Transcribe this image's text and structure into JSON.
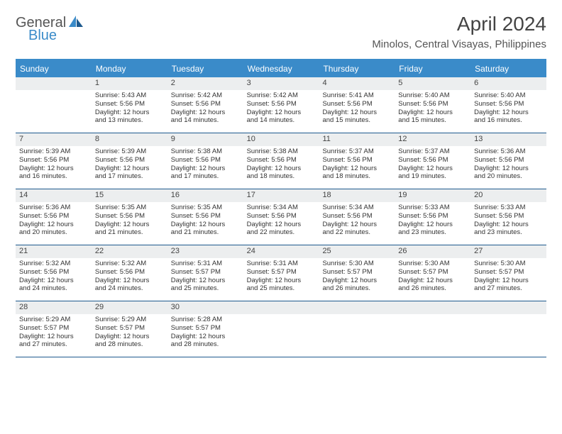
{
  "brand": {
    "general": "General",
    "blue": "Blue"
  },
  "title": {
    "month": "April 2024",
    "location": "Minolos, Central Visayas, Philippines"
  },
  "colors": {
    "accent": "#3a8bc9",
    "header_bg": "#3a8bc9",
    "daynum_bg": "#eceeef",
    "border": "#1e5a8e",
    "text": "#333333"
  },
  "day_names": [
    "Sunday",
    "Monday",
    "Tuesday",
    "Wednesday",
    "Thursday",
    "Friday",
    "Saturday"
  ],
  "weeks": [
    [
      {
        "empty": true
      },
      {
        "day": 1,
        "sunrise": "Sunrise: 5:43 AM",
        "sunset": "Sunset: 5:56 PM",
        "daylight1": "Daylight: 12 hours",
        "daylight2": "and 13 minutes."
      },
      {
        "day": 2,
        "sunrise": "Sunrise: 5:42 AM",
        "sunset": "Sunset: 5:56 PM",
        "daylight1": "Daylight: 12 hours",
        "daylight2": "and 14 minutes."
      },
      {
        "day": 3,
        "sunrise": "Sunrise: 5:42 AM",
        "sunset": "Sunset: 5:56 PM",
        "daylight1": "Daylight: 12 hours",
        "daylight2": "and 14 minutes."
      },
      {
        "day": 4,
        "sunrise": "Sunrise: 5:41 AM",
        "sunset": "Sunset: 5:56 PM",
        "daylight1": "Daylight: 12 hours",
        "daylight2": "and 15 minutes."
      },
      {
        "day": 5,
        "sunrise": "Sunrise: 5:40 AM",
        "sunset": "Sunset: 5:56 PM",
        "daylight1": "Daylight: 12 hours",
        "daylight2": "and 15 minutes."
      },
      {
        "day": 6,
        "sunrise": "Sunrise: 5:40 AM",
        "sunset": "Sunset: 5:56 PM",
        "daylight1": "Daylight: 12 hours",
        "daylight2": "and 16 minutes."
      }
    ],
    [
      {
        "day": 7,
        "sunrise": "Sunrise: 5:39 AM",
        "sunset": "Sunset: 5:56 PM",
        "daylight1": "Daylight: 12 hours",
        "daylight2": "and 16 minutes."
      },
      {
        "day": 8,
        "sunrise": "Sunrise: 5:39 AM",
        "sunset": "Sunset: 5:56 PM",
        "daylight1": "Daylight: 12 hours",
        "daylight2": "and 17 minutes."
      },
      {
        "day": 9,
        "sunrise": "Sunrise: 5:38 AM",
        "sunset": "Sunset: 5:56 PM",
        "daylight1": "Daylight: 12 hours",
        "daylight2": "and 17 minutes."
      },
      {
        "day": 10,
        "sunrise": "Sunrise: 5:38 AM",
        "sunset": "Sunset: 5:56 PM",
        "daylight1": "Daylight: 12 hours",
        "daylight2": "and 18 minutes."
      },
      {
        "day": 11,
        "sunrise": "Sunrise: 5:37 AM",
        "sunset": "Sunset: 5:56 PM",
        "daylight1": "Daylight: 12 hours",
        "daylight2": "and 18 minutes."
      },
      {
        "day": 12,
        "sunrise": "Sunrise: 5:37 AM",
        "sunset": "Sunset: 5:56 PM",
        "daylight1": "Daylight: 12 hours",
        "daylight2": "and 19 minutes."
      },
      {
        "day": 13,
        "sunrise": "Sunrise: 5:36 AM",
        "sunset": "Sunset: 5:56 PM",
        "daylight1": "Daylight: 12 hours",
        "daylight2": "and 20 minutes."
      }
    ],
    [
      {
        "day": 14,
        "sunrise": "Sunrise: 5:36 AM",
        "sunset": "Sunset: 5:56 PM",
        "daylight1": "Daylight: 12 hours",
        "daylight2": "and 20 minutes."
      },
      {
        "day": 15,
        "sunrise": "Sunrise: 5:35 AM",
        "sunset": "Sunset: 5:56 PM",
        "daylight1": "Daylight: 12 hours",
        "daylight2": "and 21 minutes."
      },
      {
        "day": 16,
        "sunrise": "Sunrise: 5:35 AM",
        "sunset": "Sunset: 5:56 PM",
        "daylight1": "Daylight: 12 hours",
        "daylight2": "and 21 minutes."
      },
      {
        "day": 17,
        "sunrise": "Sunrise: 5:34 AM",
        "sunset": "Sunset: 5:56 PM",
        "daylight1": "Daylight: 12 hours",
        "daylight2": "and 22 minutes."
      },
      {
        "day": 18,
        "sunrise": "Sunrise: 5:34 AM",
        "sunset": "Sunset: 5:56 PM",
        "daylight1": "Daylight: 12 hours",
        "daylight2": "and 22 minutes."
      },
      {
        "day": 19,
        "sunrise": "Sunrise: 5:33 AM",
        "sunset": "Sunset: 5:56 PM",
        "daylight1": "Daylight: 12 hours",
        "daylight2": "and 23 minutes."
      },
      {
        "day": 20,
        "sunrise": "Sunrise: 5:33 AM",
        "sunset": "Sunset: 5:56 PM",
        "daylight1": "Daylight: 12 hours",
        "daylight2": "and 23 minutes."
      }
    ],
    [
      {
        "day": 21,
        "sunrise": "Sunrise: 5:32 AM",
        "sunset": "Sunset: 5:56 PM",
        "daylight1": "Daylight: 12 hours",
        "daylight2": "and 24 minutes."
      },
      {
        "day": 22,
        "sunrise": "Sunrise: 5:32 AM",
        "sunset": "Sunset: 5:56 PM",
        "daylight1": "Daylight: 12 hours",
        "daylight2": "and 24 minutes."
      },
      {
        "day": 23,
        "sunrise": "Sunrise: 5:31 AM",
        "sunset": "Sunset: 5:57 PM",
        "daylight1": "Daylight: 12 hours",
        "daylight2": "and 25 minutes."
      },
      {
        "day": 24,
        "sunrise": "Sunrise: 5:31 AM",
        "sunset": "Sunset: 5:57 PM",
        "daylight1": "Daylight: 12 hours",
        "daylight2": "and 25 minutes."
      },
      {
        "day": 25,
        "sunrise": "Sunrise: 5:30 AM",
        "sunset": "Sunset: 5:57 PM",
        "daylight1": "Daylight: 12 hours",
        "daylight2": "and 26 minutes."
      },
      {
        "day": 26,
        "sunrise": "Sunrise: 5:30 AM",
        "sunset": "Sunset: 5:57 PM",
        "daylight1": "Daylight: 12 hours",
        "daylight2": "and 26 minutes."
      },
      {
        "day": 27,
        "sunrise": "Sunrise: 5:30 AM",
        "sunset": "Sunset: 5:57 PM",
        "daylight1": "Daylight: 12 hours",
        "daylight2": "and 27 minutes."
      }
    ],
    [
      {
        "day": 28,
        "sunrise": "Sunrise: 5:29 AM",
        "sunset": "Sunset: 5:57 PM",
        "daylight1": "Daylight: 12 hours",
        "daylight2": "and 27 minutes."
      },
      {
        "day": 29,
        "sunrise": "Sunrise: 5:29 AM",
        "sunset": "Sunset: 5:57 PM",
        "daylight1": "Daylight: 12 hours",
        "daylight2": "and 28 minutes."
      },
      {
        "day": 30,
        "sunrise": "Sunrise: 5:28 AM",
        "sunset": "Sunset: 5:57 PM",
        "daylight1": "Daylight: 12 hours",
        "daylight2": "and 28 minutes."
      },
      {
        "empty": true
      },
      {
        "empty": true
      },
      {
        "empty": true
      },
      {
        "empty": true
      }
    ]
  ]
}
